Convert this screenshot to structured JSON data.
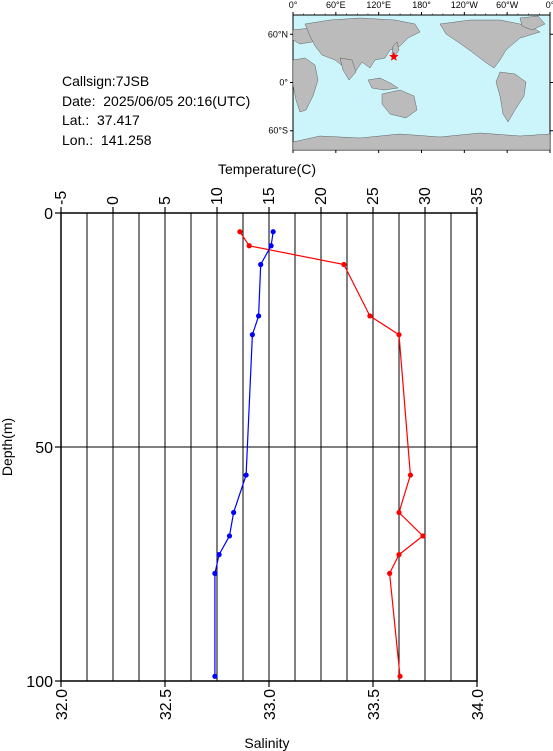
{
  "station": {
    "callsign_line": "Callsign:7JSB",
    "date_line": "Date:  2025/06/05 20:16(UTC)",
    "lat_line": "Lat.:  37.417",
    "lon_line": "Lon.:  141.258"
  },
  "map": {
    "lon_labels": [
      "0°",
      "60°E",
      "120°E",
      "180°",
      "120°W",
      "60°W",
      "0°"
    ],
    "lat_labels": [
      "60°N",
      "0°",
      "60°S"
    ],
    "ocean_color": "#ccf5fb",
    "land_color": "#bbbbbb",
    "marker": {
      "lon": 141.258,
      "lat": 37.417,
      "color": "#ff0000",
      "shape": "star"
    }
  },
  "chart_data": {
    "type": "line",
    "top_axis_label": "Temperature(C)",
    "bottom_axis_label": "Salinity",
    "ylabel": "Depth(m)",
    "temperature_ticks": [
      "-5",
      "0",
      "5",
      "10",
      "15",
      "20",
      "25",
      "30",
      "35"
    ],
    "salinity_ticks": [
      "32.0",
      "32.5",
      "33.0",
      "33.5",
      "34.0"
    ],
    "depth_ticks": [
      "0",
      "50",
      "100"
    ],
    "temperature_range": [
      -5,
      35
    ],
    "salinity_range": [
      32.0,
      34.0
    ],
    "depth_range": [
      0,
      100
    ],
    "depth_inverted": true,
    "grid": {
      "vertical_every_temperature": 2.5,
      "horizontal_depths": [
        50
      ]
    },
    "series": [
      {
        "role": "temperature",
        "axis": "top",
        "color": "#ff0000",
        "points": [
          [
            12.2,
            4
          ],
          [
            13.1,
            7
          ],
          [
            22.2,
            11
          ],
          [
            24.7,
            22
          ],
          [
            27.5,
            26
          ],
          [
            28.6,
            56
          ],
          [
            27.5,
            64
          ],
          [
            29.8,
            69
          ],
          [
            27.5,
            73
          ],
          [
            26.6,
            77
          ],
          [
            27.6,
            99
          ]
        ]
      },
      {
        "role": "salinity",
        "axis": "bottom",
        "color": "#0000ff",
        "points": [
          [
            33.02,
            4
          ],
          [
            33.01,
            7
          ],
          [
            32.96,
            11
          ],
          [
            32.95,
            22
          ],
          [
            32.92,
            26
          ],
          [
            32.89,
            56
          ],
          [
            32.83,
            64
          ],
          [
            32.81,
            69
          ],
          [
            32.76,
            73
          ],
          [
            32.74,
            77
          ],
          [
            32.74,
            99
          ]
        ]
      }
    ]
  }
}
